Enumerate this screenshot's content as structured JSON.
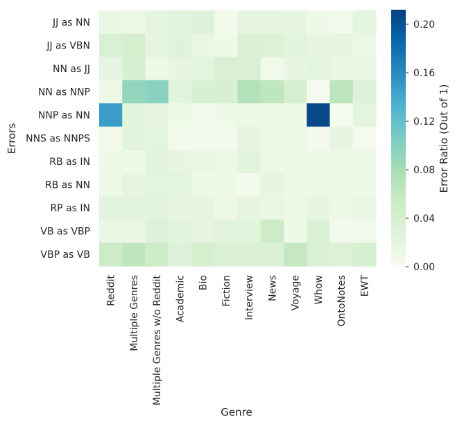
{
  "chart_data": {
    "type": "heatmap",
    "title": "",
    "xlabel": "Genre",
    "ylabel": "Errors",
    "colorbar_label": "Error Ratio (Out of 1)",
    "colorbar_range": [
      0,
      0.212
    ],
    "colorbar_ticks": [
      0.0,
      0.04,
      0.08,
      0.12,
      0.16,
      0.2
    ],
    "colorbar_tick_labels": [
      "0.00",
      "0.04",
      "0.08",
      "0.12",
      "0.16",
      "0.20"
    ],
    "colormap": "GnBu",
    "colormap_stops": [
      "#f7fcf0",
      "#e0f3db",
      "#ccebc5",
      "#a8ddb5",
      "#7bccc4",
      "#4eb3d3",
      "#2b8cbe",
      "#0868ac",
      "#084081"
    ],
    "x_categories": [
      "Reddit",
      "Multiple Genres",
      "Multiple Genres w/o Reddit",
      "Academic",
      "Bio",
      "Fiction",
      "Interview",
      "News",
      "Voyage",
      "Whow",
      "OntoNotes",
      "EWT"
    ],
    "y_categories": [
      "JJ as NN",
      "JJ as VBN",
      "NN as JJ",
      "NN as NNP",
      "NNP as NN",
      "NNS as NNPS",
      "RB as IN",
      "RB as NN",
      "RP as IN",
      "VB as VBP",
      "VBP as VB"
    ],
    "values": [
      [
        0.015,
        0.012,
        0.02,
        0.025,
        0.028,
        0.006,
        0.02,
        0.02,
        0.018,
        0.01,
        0.007,
        0.022
      ],
      [
        0.035,
        0.042,
        0.018,
        0.028,
        0.016,
        0.01,
        0.035,
        0.032,
        0.025,
        0.018,
        0.018,
        0.013
      ],
      [
        0.018,
        0.038,
        0.01,
        0.018,
        0.022,
        0.035,
        0.035,
        0.008,
        0.018,
        0.022,
        0.015,
        0.015
      ],
      [
        0.012,
        0.092,
        0.097,
        0.025,
        0.038,
        0.038,
        0.072,
        0.062,
        0.04,
        0.003,
        0.065,
        0.03
      ],
      [
        0.148,
        0.025,
        0.018,
        0.01,
        0.005,
        0.01,
        0.012,
        0.012,
        0.01,
        0.206,
        0.004,
        0.022
      ],
      [
        0.005,
        0.024,
        0.022,
        0.006,
        0.006,
        0.006,
        0.02,
        0.012,
        0.012,
        0.005,
        0.018,
        0.004
      ],
      [
        0.01,
        0.01,
        0.024,
        0.018,
        0.015,
        0.012,
        0.025,
        0.012,
        0.012,
        0.012,
        0.012,
        0.012
      ],
      [
        0.012,
        0.02,
        0.022,
        0.022,
        0.01,
        0.01,
        0.005,
        0.018,
        0.012,
        0.012,
        0.01,
        0.012
      ],
      [
        0.024,
        0.024,
        0.024,
        0.02,
        0.02,
        0.012,
        0.02,
        0.015,
        0.012,
        0.018,
        0.012,
        0.015
      ],
      [
        0.014,
        0.014,
        0.03,
        0.024,
        0.018,
        0.024,
        0.025,
        0.052,
        0.01,
        0.034,
        0.008,
        0.008
      ],
      [
        0.052,
        0.062,
        0.05,
        0.03,
        0.042,
        0.035,
        0.035,
        0.035,
        0.058,
        0.035,
        0.032,
        0.04
      ]
    ]
  }
}
